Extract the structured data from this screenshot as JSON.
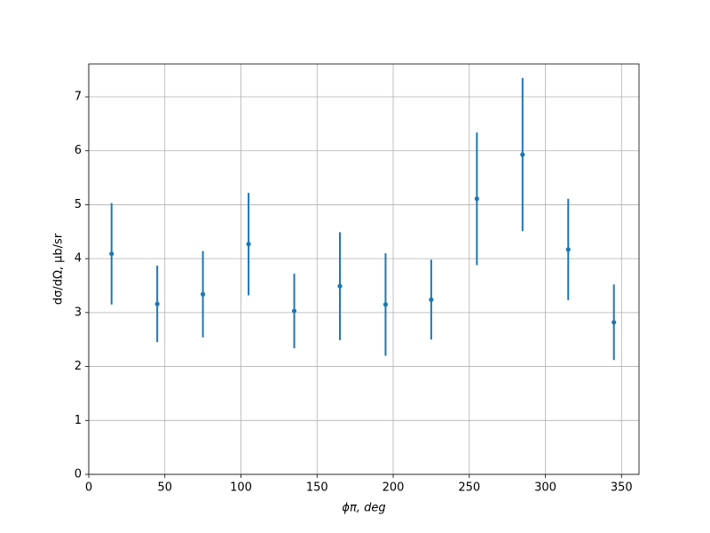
{
  "chart_data": {
    "type": "scatter",
    "xlabel": "ϕπ, deg",
    "ylabel": "dσ/dΩ, μb/sr",
    "x": [
      15,
      45,
      75,
      105,
      135,
      165,
      195,
      225,
      255,
      285,
      315,
      345
    ],
    "values": [
      4.09,
      3.16,
      3.34,
      4.27,
      3.03,
      3.49,
      3.15,
      3.24,
      5.11,
      5.93,
      4.17,
      2.82
    ],
    "errors": [
      0.94,
      0.71,
      0.8,
      0.95,
      0.69,
      1.0,
      0.95,
      0.74,
      1.23,
      1.42,
      0.94,
      0.7
    ],
    "color": "#1f77b4",
    "xlim": [
      0,
      361.5
    ],
    "ylim": [
      0,
      7.61
    ],
    "xticks": [
      0,
      50,
      100,
      150,
      200,
      250,
      300,
      350
    ],
    "yticks": [
      0,
      1,
      2,
      3,
      4,
      5,
      6,
      7
    ],
    "grid": true
  }
}
